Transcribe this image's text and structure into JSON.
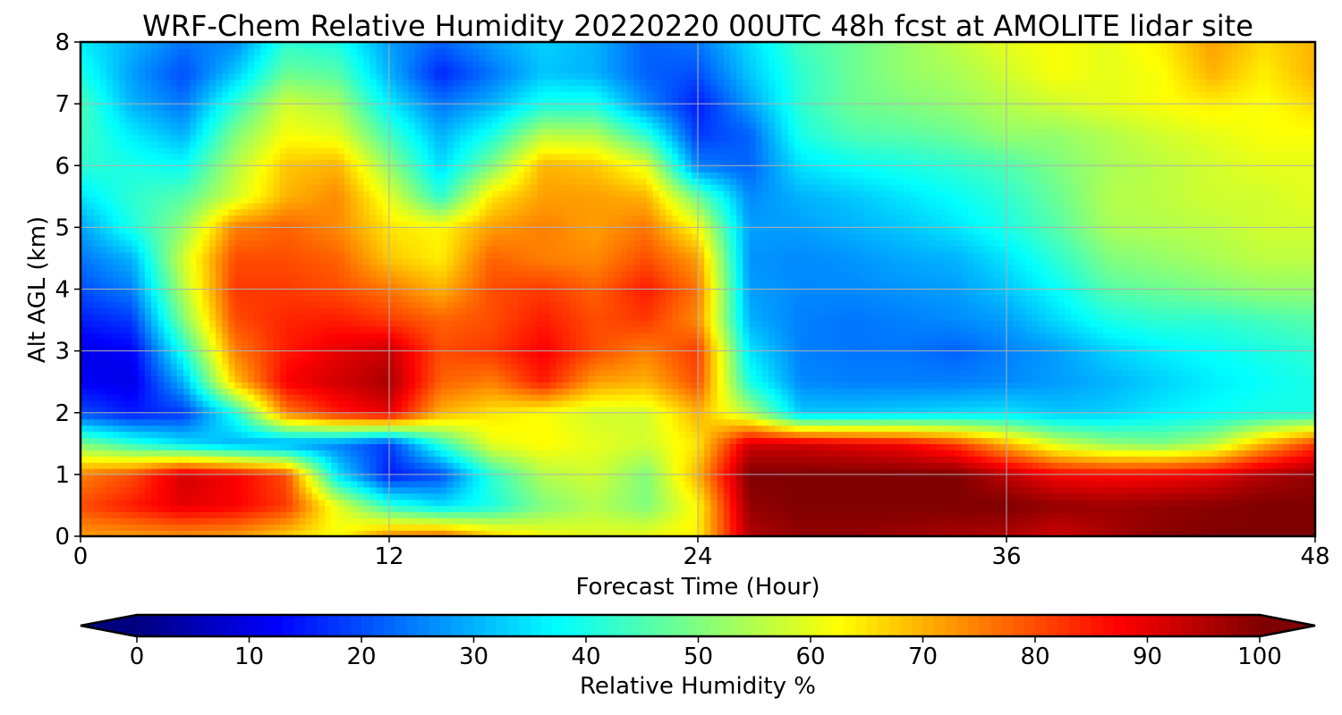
{
  "chart_data": {
    "type": "heatmap",
    "title": "WRF-Chem Relative Humidity 20220220 00UTC 48h fcst at AMOLITE lidar site",
    "xlabel": "Forecast Time (Hour)",
    "ylabel": "Alt AGL (km)",
    "xlim": [
      0,
      48
    ],
    "ylim": [
      0,
      8
    ],
    "x_ticks": [
      "0",
      "12",
      "24",
      "36",
      "48"
    ],
    "y_ticks": [
      "0",
      "1",
      "2",
      "3",
      "4",
      "5",
      "6",
      "7",
      "8"
    ],
    "grid": true,
    "colormap": "jet",
    "colorbar": {
      "label": "Relative Humidity %",
      "range": [
        0,
        100
      ],
      "ticks": [
        "0",
        "10",
        "20",
        "30",
        "40",
        "50",
        "60",
        "70",
        "80",
        "90",
        "100"
      ],
      "extend": "both",
      "min_color": "#00007f",
      "max_color": "#7f0000"
    },
    "grid_x_hours": [
      0,
      2,
      4,
      6,
      8,
      10,
      12,
      14,
      16,
      18,
      20,
      22,
      24,
      26,
      28,
      30,
      32,
      34,
      36,
      38,
      40,
      42,
      44,
      46,
      48
    ],
    "grid_z_km": [
      0,
      0.5,
      1,
      1.5,
      2,
      2.5,
      3,
      3.5,
      4,
      4.5,
      5,
      5.5,
      6,
      6.5,
      7,
      7.5,
      8
    ],
    "values_rh_percent": [
      [
        72,
        72,
        73,
        72,
        67,
        62,
        75,
        78,
        68,
        62,
        60,
        61,
        64,
        95,
        98,
        98,
        97,
        96,
        95,
        92,
        96,
        99,
        100,
        100,
        100
      ],
      [
        80,
        85,
        90,
        88,
        82,
        60,
        42,
        35,
        40,
        50,
        55,
        50,
        63,
        98,
        100,
        100,
        100,
        100,
        100,
        98,
        97,
        98,
        99,
        100,
        100
      ],
      [
        75,
        80,
        92,
        88,
        80,
        35,
        15,
        20,
        42,
        55,
        58,
        50,
        70,
        100,
        100,
        100,
        100,
        100,
        94,
        88,
        87,
        88,
        90,
        95,
        98
      ],
      [
        50,
        42,
        35,
        30,
        28,
        25,
        18,
        42,
        60,
        63,
        60,
        58,
        65,
        92,
        92,
        90,
        88,
        82,
        70,
        58,
        52,
        50,
        55,
        70,
        82
      ],
      [
        20,
        15,
        18,
        40,
        75,
        85,
        90,
        70,
        65,
        62,
        58,
        58,
        70,
        55,
        32,
        32,
        33,
        34,
        35,
        32,
        33,
        36,
        38,
        40,
        40
      ],
      [
        12,
        10,
        30,
        68,
        88,
        92,
        96,
        78,
        75,
        85,
        72,
        70,
        80,
        40,
        26,
        25,
        25,
        25,
        26,
        28,
        30,
        33,
        36,
        38,
        40
      ],
      [
        10,
        12,
        40,
        75,
        85,
        90,
        93,
        80,
        82,
        88,
        80,
        75,
        82,
        35,
        25,
        24,
        24,
        22,
        25,
        28,
        33,
        36,
        38,
        40,
        42
      ],
      [
        15,
        18,
        50,
        80,
        84,
        85,
        82,
        78,
        80,
        85,
        80,
        82,
        74,
        30,
        25,
        24,
        25,
        26,
        28,
        34,
        40,
        42,
        42,
        44,
        46
      ],
      [
        20,
        25,
        55,
        82,
        82,
        80,
        76,
        70,
        80,
        82,
        78,
        85,
        76,
        28,
        26,
        26,
        27,
        28,
        32,
        38,
        46,
        48,
        50,
        52,
        52
      ],
      [
        24,
        30,
        58,
        80,
        80,
        78,
        68,
        64,
        78,
        75,
        74,
        80,
        72,
        27,
        26,
        27,
        29,
        30,
        35,
        42,
        50,
        52,
        54,
        56,
        56
      ],
      [
        28,
        40,
        52,
        75,
        78,
        74,
        65,
        63,
        72,
        75,
        72,
        76,
        62,
        28,
        28,
        30,
        32,
        35,
        40,
        46,
        54,
        55,
        56,
        58,
        58
      ],
      [
        35,
        42,
        46,
        58,
        70,
        74,
        60,
        42,
        65,
        72,
        72,
        70,
        48,
        26,
        30,
        32,
        35,
        38,
        42,
        48,
        55,
        56,
        58,
        58,
        60
      ],
      [
        42,
        40,
        38,
        55,
        68,
        70,
        52,
        34,
        50,
        70,
        68,
        60,
        25,
        22,
        35,
        38,
        40,
        42,
        45,
        50,
        54,
        56,
        58,
        60,
        60
      ],
      [
        44,
        36,
        30,
        50,
        62,
        60,
        44,
        30,
        40,
        56,
        55,
        42,
        18,
        22,
        40,
        45,
        46,
        48,
        52,
        52,
        55,
        58,
        60,
        62,
        62
      ],
      [
        45,
        30,
        24,
        42,
        58,
        54,
        36,
        24,
        30,
        40,
        40,
        26,
        15,
        28,
        42,
        48,
        50,
        52,
        55,
        58,
        60,
        62,
        64,
        62,
        66
      ],
      [
        40,
        28,
        20,
        32,
        48,
        46,
        30,
        16,
        24,
        32,
        30,
        22,
        20,
        32,
        42,
        48,
        52,
        54,
        58,
        62,
        60,
        62,
        70,
        64,
        70
      ],
      [
        36,
        30,
        24,
        26,
        42,
        40,
        28,
        22,
        28,
        33,
        30,
        22,
        24,
        34,
        44,
        48,
        52,
        56,
        60,
        62,
        60,
        64,
        72,
        66,
        70
      ]
    ]
  }
}
